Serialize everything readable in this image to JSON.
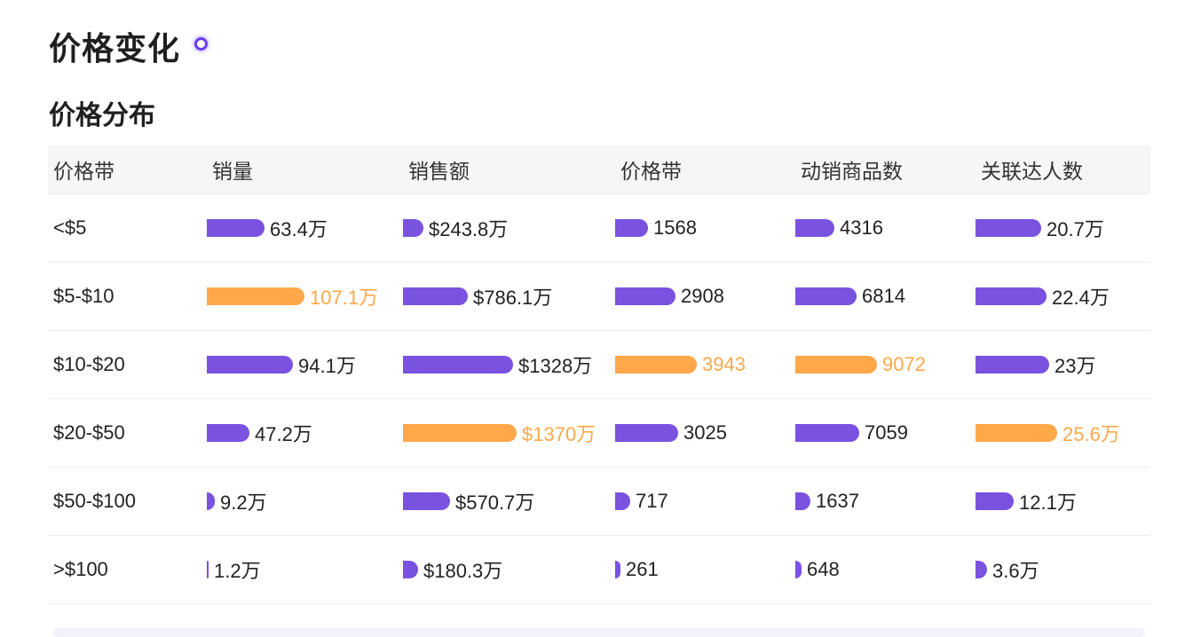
{
  "page": {
    "title": "价格变化",
    "section_title": "价格分布"
  },
  "colors": {
    "normal_bar": "#7a52e0",
    "highlight_bar": "#ffa84a"
  },
  "table": {
    "headers": [
      "价格带",
      "销量",
      "销售额",
      "价格带",
      "动销商品数",
      "关联达人数"
    ],
    "column_max": [
      107.1,
      1370,
      3943,
      9072,
      25.6
    ],
    "rows": [
      {
        "label": "<$5",
        "cells": [
          {
            "text": "63.4万",
            "value": 63.4,
            "hi": false
          },
          {
            "text": "$243.8万",
            "value": 243.8,
            "hi": false
          },
          {
            "text": "1568",
            "value": 1568,
            "hi": false
          },
          {
            "text": "4316",
            "value": 4316,
            "hi": false
          },
          {
            "text": "20.7万",
            "value": 20.7,
            "hi": false
          }
        ]
      },
      {
        "label": "$5-$10",
        "cells": [
          {
            "text": "107.1万",
            "value": 107.1,
            "hi": true
          },
          {
            "text": "$786.1万",
            "value": 786.1,
            "hi": false
          },
          {
            "text": "2908",
            "value": 2908,
            "hi": false
          },
          {
            "text": "6814",
            "value": 6814,
            "hi": false
          },
          {
            "text": "22.4万",
            "value": 22.4,
            "hi": false
          }
        ]
      },
      {
        "label": "$10-$20",
        "cells": [
          {
            "text": "94.1万",
            "value": 94.1,
            "hi": false
          },
          {
            "text": "$1328万",
            "value": 1328,
            "hi": false
          },
          {
            "text": "3943",
            "value": 3943,
            "hi": true
          },
          {
            "text": "9072",
            "value": 9072,
            "hi": true
          },
          {
            "text": "23万",
            "value": 23,
            "hi": false
          }
        ]
      },
      {
        "label": "$20-$50",
        "cells": [
          {
            "text": "47.2万",
            "value": 47.2,
            "hi": false
          },
          {
            "text": "$1370万",
            "value": 1370,
            "hi": true
          },
          {
            "text": "3025",
            "value": 3025,
            "hi": false
          },
          {
            "text": "7059",
            "value": 7059,
            "hi": false
          },
          {
            "text": "25.6万",
            "value": 25.6,
            "hi": true
          }
        ]
      },
      {
        "label": "$50-$100",
        "cells": [
          {
            "text": "9.2万",
            "value": 9.2,
            "hi": false
          },
          {
            "text": "$570.7万",
            "value": 570.7,
            "hi": false
          },
          {
            "text": "717",
            "value": 717,
            "hi": false
          },
          {
            "text": "1637",
            "value": 1637,
            "hi": false
          },
          {
            "text": "12.1万",
            "value": 12.1,
            "hi": false
          }
        ]
      },
      {
        "label": ">$100",
        "cells": [
          {
            "text": "1.2万",
            "value": 1.2,
            "hi": false
          },
          {
            "text": "$180.3万",
            "value": 180.3,
            "hi": false
          },
          {
            "text": "261",
            "value": 261,
            "hi": false
          },
          {
            "text": "648",
            "value": 648,
            "hi": false
          },
          {
            "text": "3.6万",
            "value": 3.6,
            "hi": false
          }
        ]
      }
    ]
  }
}
